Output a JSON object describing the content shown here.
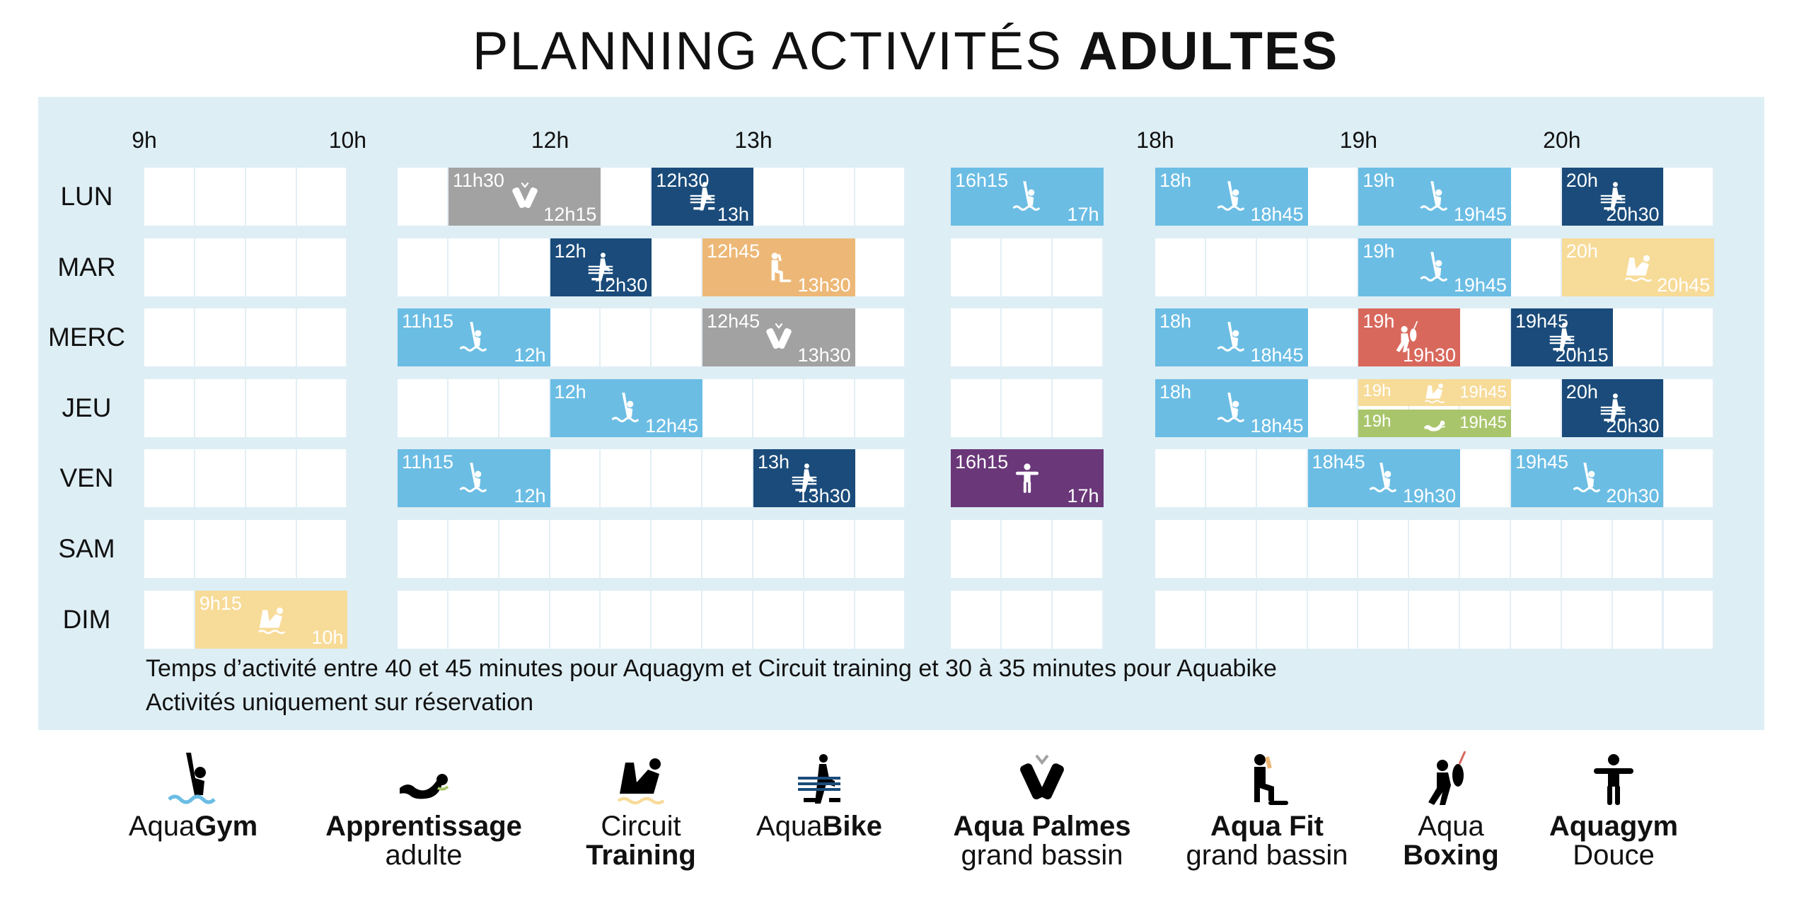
{
  "title": {
    "light": "PLANNING ACTIVITÉS ",
    "bold": "ADULTES"
  },
  "hours": [
    {
      "label": "9h",
      "time": "9h"
    },
    {
      "label": "10h",
      "time": "10h"
    },
    {
      "label": "12h",
      "time": "12h"
    },
    {
      "label": "13h",
      "time": "13h"
    },
    {
      "label": "18h",
      "time": "18h"
    },
    {
      "label": "19h",
      "time": "19h"
    },
    {
      "label": "20h",
      "time": "20h"
    }
  ],
  "activities": {
    "aquagym": {
      "color": "#6bbde4",
      "icon": "swimmer-icon"
    },
    "apprentissage": {
      "color": "#a9c56b",
      "icon": "swimming-learner-icon"
    },
    "circuit": {
      "color": "#f7db98",
      "icon": "circuit-training-icon"
    },
    "aquabike": {
      "color": "#1a4b7a",
      "icon": "aquabike-icon"
    },
    "palmes": {
      "color": "#a3a2a3",
      "icon": "fins-icon"
    },
    "fit": {
      "color": "#edb877",
      "icon": "step-fitness-icon"
    },
    "boxing": {
      "color": "#d9685c",
      "icon": "boxing-icon"
    },
    "douce": {
      "color": "#6a3779",
      "icon": "gentle-gym-icon"
    }
  },
  "days": [
    {
      "label": "LUN",
      "sessions": [
        {
          "activity": "palmes",
          "start": "11h30",
          "end": "12h15"
        },
        {
          "activity": "aquabike",
          "start": "12h30",
          "end": "13h"
        },
        {
          "activity": "aquagym",
          "start": "16h15",
          "end": "17h"
        },
        {
          "activity": "aquagym",
          "start": "18h",
          "end": "18h45"
        },
        {
          "activity": "aquagym",
          "start": "19h",
          "end": "19h45"
        },
        {
          "activity": "aquabike",
          "start": "20h",
          "end": "20h30"
        }
      ]
    },
    {
      "label": "MAR",
      "sessions": [
        {
          "activity": "aquabike",
          "start": "12h",
          "end": "12h30"
        },
        {
          "activity": "fit",
          "start": "12h45",
          "end": "13h30"
        },
        {
          "activity": "aquagym",
          "start": "19h",
          "end": "19h45"
        },
        {
          "activity": "circuit",
          "start": "20h",
          "end": "20h45"
        }
      ]
    },
    {
      "label": "MERC",
      "sessions": [
        {
          "activity": "aquagym",
          "start": "11h15",
          "end": "12h"
        },
        {
          "activity": "palmes",
          "start": "12h45",
          "end": "13h30"
        },
        {
          "activity": "aquagym",
          "start": "18h",
          "end": "18h45"
        },
        {
          "activity": "boxing",
          "start": "19h",
          "end": "19h30"
        },
        {
          "activity": "aquabike",
          "start": "19h45",
          "end": "20h15"
        }
      ]
    },
    {
      "label": "JEU",
      "sessions": [
        {
          "activity": "aquagym",
          "start": "12h",
          "end": "12h45"
        },
        {
          "activity": "aquagym",
          "start": "18h",
          "end": "18h45"
        },
        {
          "activity": "circuit",
          "start": "19h",
          "end": "19h45",
          "slot": "top"
        },
        {
          "activity": "apprentissage",
          "start": "19h",
          "end": "19h45",
          "slot": "bottom"
        },
        {
          "activity": "aquabike",
          "start": "20h",
          "end": "20h30"
        }
      ]
    },
    {
      "label": "VEN",
      "sessions": [
        {
          "activity": "aquagym",
          "start": "11h15",
          "end": "12h"
        },
        {
          "activity": "aquabike",
          "start": "13h",
          "end": "13h30"
        },
        {
          "activity": "douce",
          "start": "16h15",
          "end": "17h"
        },
        {
          "activity": "aquagym",
          "start": "18h45",
          "end": "19h30"
        },
        {
          "activity": "aquagym",
          "start": "19h45",
          "end": "20h30"
        }
      ]
    },
    {
      "label": "SAM",
      "sessions": []
    },
    {
      "label": "DIM",
      "sessions": [
        {
          "activity": "circuit",
          "start": "9h15",
          "end": "10h"
        }
      ]
    }
  ],
  "notes": [
    "Temps d’activité entre 40 et 45 minutes pour Aquagym et Circuit training et 30 à 35 minutes pour Aquabike",
    "Activités uniquement sur réservation"
  ],
  "legend": [
    {
      "activity": "aquagym",
      "lines": [
        [
          {
            "text": "Aqua",
            "bold": false
          },
          {
            "text": "Gym",
            "bold": true
          }
        ]
      ]
    },
    {
      "activity": "apprentissage",
      "lines": [
        [
          {
            "text": "Apprentissage",
            "bold": true
          }
        ],
        [
          {
            "text": "adulte",
            "bold": false
          }
        ]
      ]
    },
    {
      "activity": "circuit",
      "lines": [
        [
          {
            "text": "Circuit",
            "bold": false
          }
        ],
        [
          {
            "text": "Training",
            "bold": true
          }
        ]
      ]
    },
    {
      "activity": "aquabike",
      "lines": [
        [
          {
            "text": "Aqua",
            "bold": false
          },
          {
            "text": "Bike",
            "bold": true
          }
        ]
      ]
    },
    {
      "activity": "palmes",
      "lines": [
        [
          {
            "text": "Aqua Palmes",
            "bold": true
          }
        ],
        [
          {
            "text": "grand bassin",
            "bold": false
          }
        ]
      ]
    },
    {
      "activity": "fit",
      "lines": [
        [
          {
            "text": "Aqua Fit",
            "bold": true
          }
        ],
        [
          {
            "text": "grand bassin",
            "bold": false
          }
        ]
      ]
    },
    {
      "activity": "boxing",
      "lines": [
        [
          {
            "text": "Aqua",
            "bold": false
          }
        ],
        [
          {
            "text": "Boxing",
            "bold": true
          }
        ]
      ]
    },
    {
      "activity": "douce",
      "lines": [
        [
          {
            "text": "Aquagym",
            "bold": true
          }
        ],
        [
          {
            "text": "Douce",
            "bold": false
          }
        ]
      ]
    }
  ]
}
